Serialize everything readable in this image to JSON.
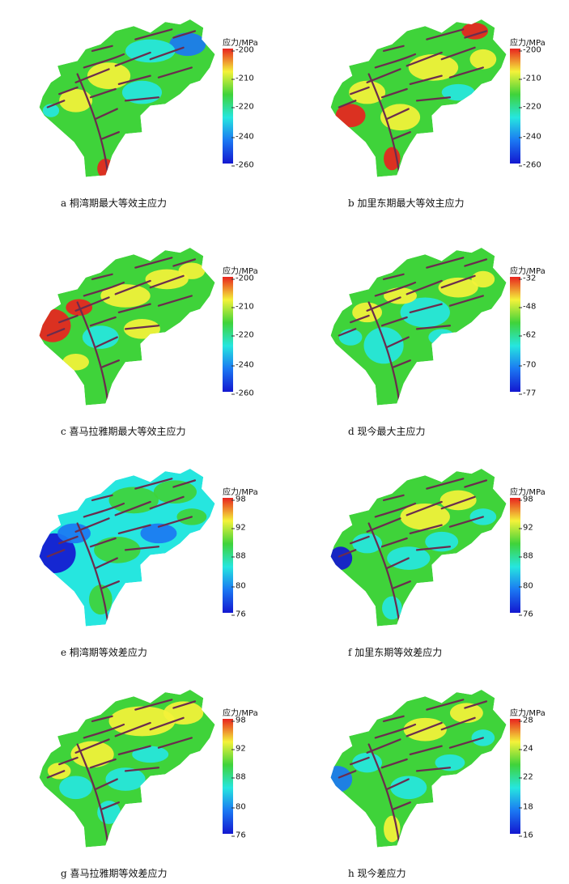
{
  "colors": {
    "red": "#e8231f",
    "yellow": "#f4f23a",
    "green": "#3fd33a",
    "cyan": "#26e6df",
    "blue": "#1b78f2",
    "darkblue": "#1317d0",
    "fault": "#6b2c4e"
  },
  "legend_title": "应力/MPa",
  "panels": [
    {
      "id": "a",
      "caption": "a  桐湾期最大等效主应力",
      "base": "green",
      "ticks": [
        "-200",
        "-210",
        "-220",
        "-240",
        "-260"
      ]
    },
    {
      "id": "b",
      "caption": "b  加里东期最大等效主应力",
      "base": "green",
      "ticks": [
        "-200",
        "-210",
        "-220",
        "-240",
        "-260"
      ]
    },
    {
      "id": "c",
      "caption": "c  喜马拉雅期最大等效主应力",
      "base": "green",
      "ticks": [
        "-200",
        "-210",
        "-220",
        "-240",
        "-260"
      ]
    },
    {
      "id": "d",
      "caption": "d  现今最大主应力",
      "base": "green",
      "ticks": [
        "-32",
        "-48",
        "-62",
        "-70",
        "-77"
      ]
    },
    {
      "id": "e",
      "caption": "e  桐湾期等效差应力",
      "base": "cyan",
      "ticks": [
        "98",
        "92",
        "88",
        "80",
        "76"
      ]
    },
    {
      "id": "f",
      "caption": "f  加里东期等效差应力",
      "base": "green",
      "ticks": [
        "98",
        "92",
        "88",
        "80",
        "76"
      ]
    },
    {
      "id": "g",
      "caption": "g  喜马拉雅期等效差应力",
      "base": "green",
      "ticks": [
        "98",
        "92",
        "88",
        "80",
        "76"
      ]
    },
    {
      "id": "h",
      "caption": "h  现今差应力",
      "base": "green",
      "ticks": [
        "28",
        "24",
        "22",
        "18",
        "16"
      ]
    }
  ]
}
